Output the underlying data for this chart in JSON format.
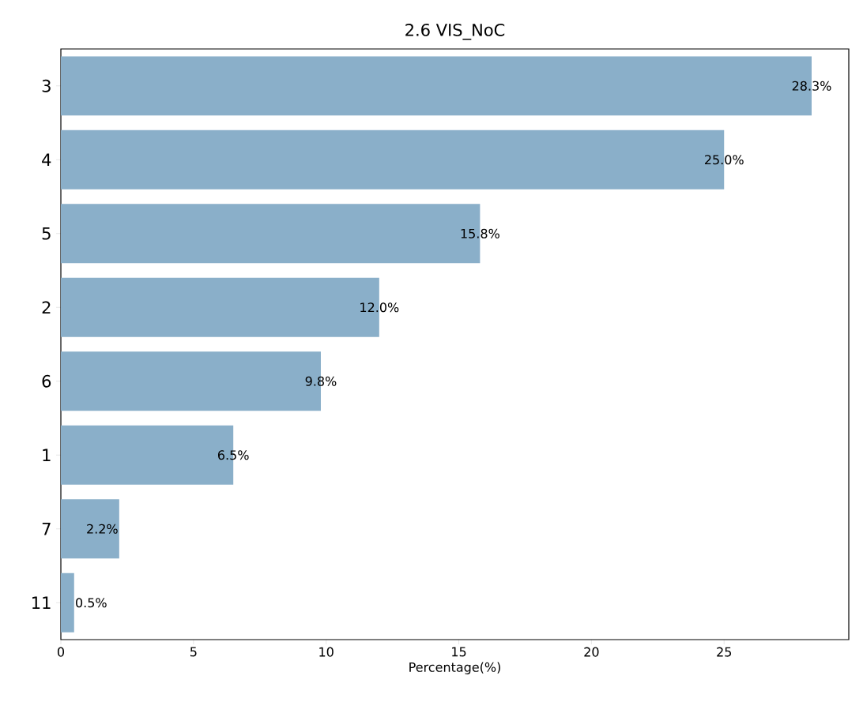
{
  "chart_data": {
    "type": "bar",
    "orientation": "horizontal",
    "title": "2.6 VIS_NoC",
    "xlabel": "Percentage(%)",
    "categories": [
      "3",
      "4",
      "5",
      "2",
      "6",
      "1",
      "7",
      "11"
    ],
    "values": [
      28.3,
      25.0,
      15.8,
      12.0,
      9.8,
      6.5,
      2.2,
      0.5
    ],
    "value_labels": [
      "28.3%",
      "25.0%",
      "15.8%",
      "12.0%",
      "9.8%",
      "6.5%",
      "2.2%",
      "0.5%"
    ],
    "color": "#8aafc9",
    "xlim": [
      0,
      29.7
    ],
    "xticks": [
      0,
      5,
      10,
      15,
      20,
      25
    ],
    "grid": false
  }
}
